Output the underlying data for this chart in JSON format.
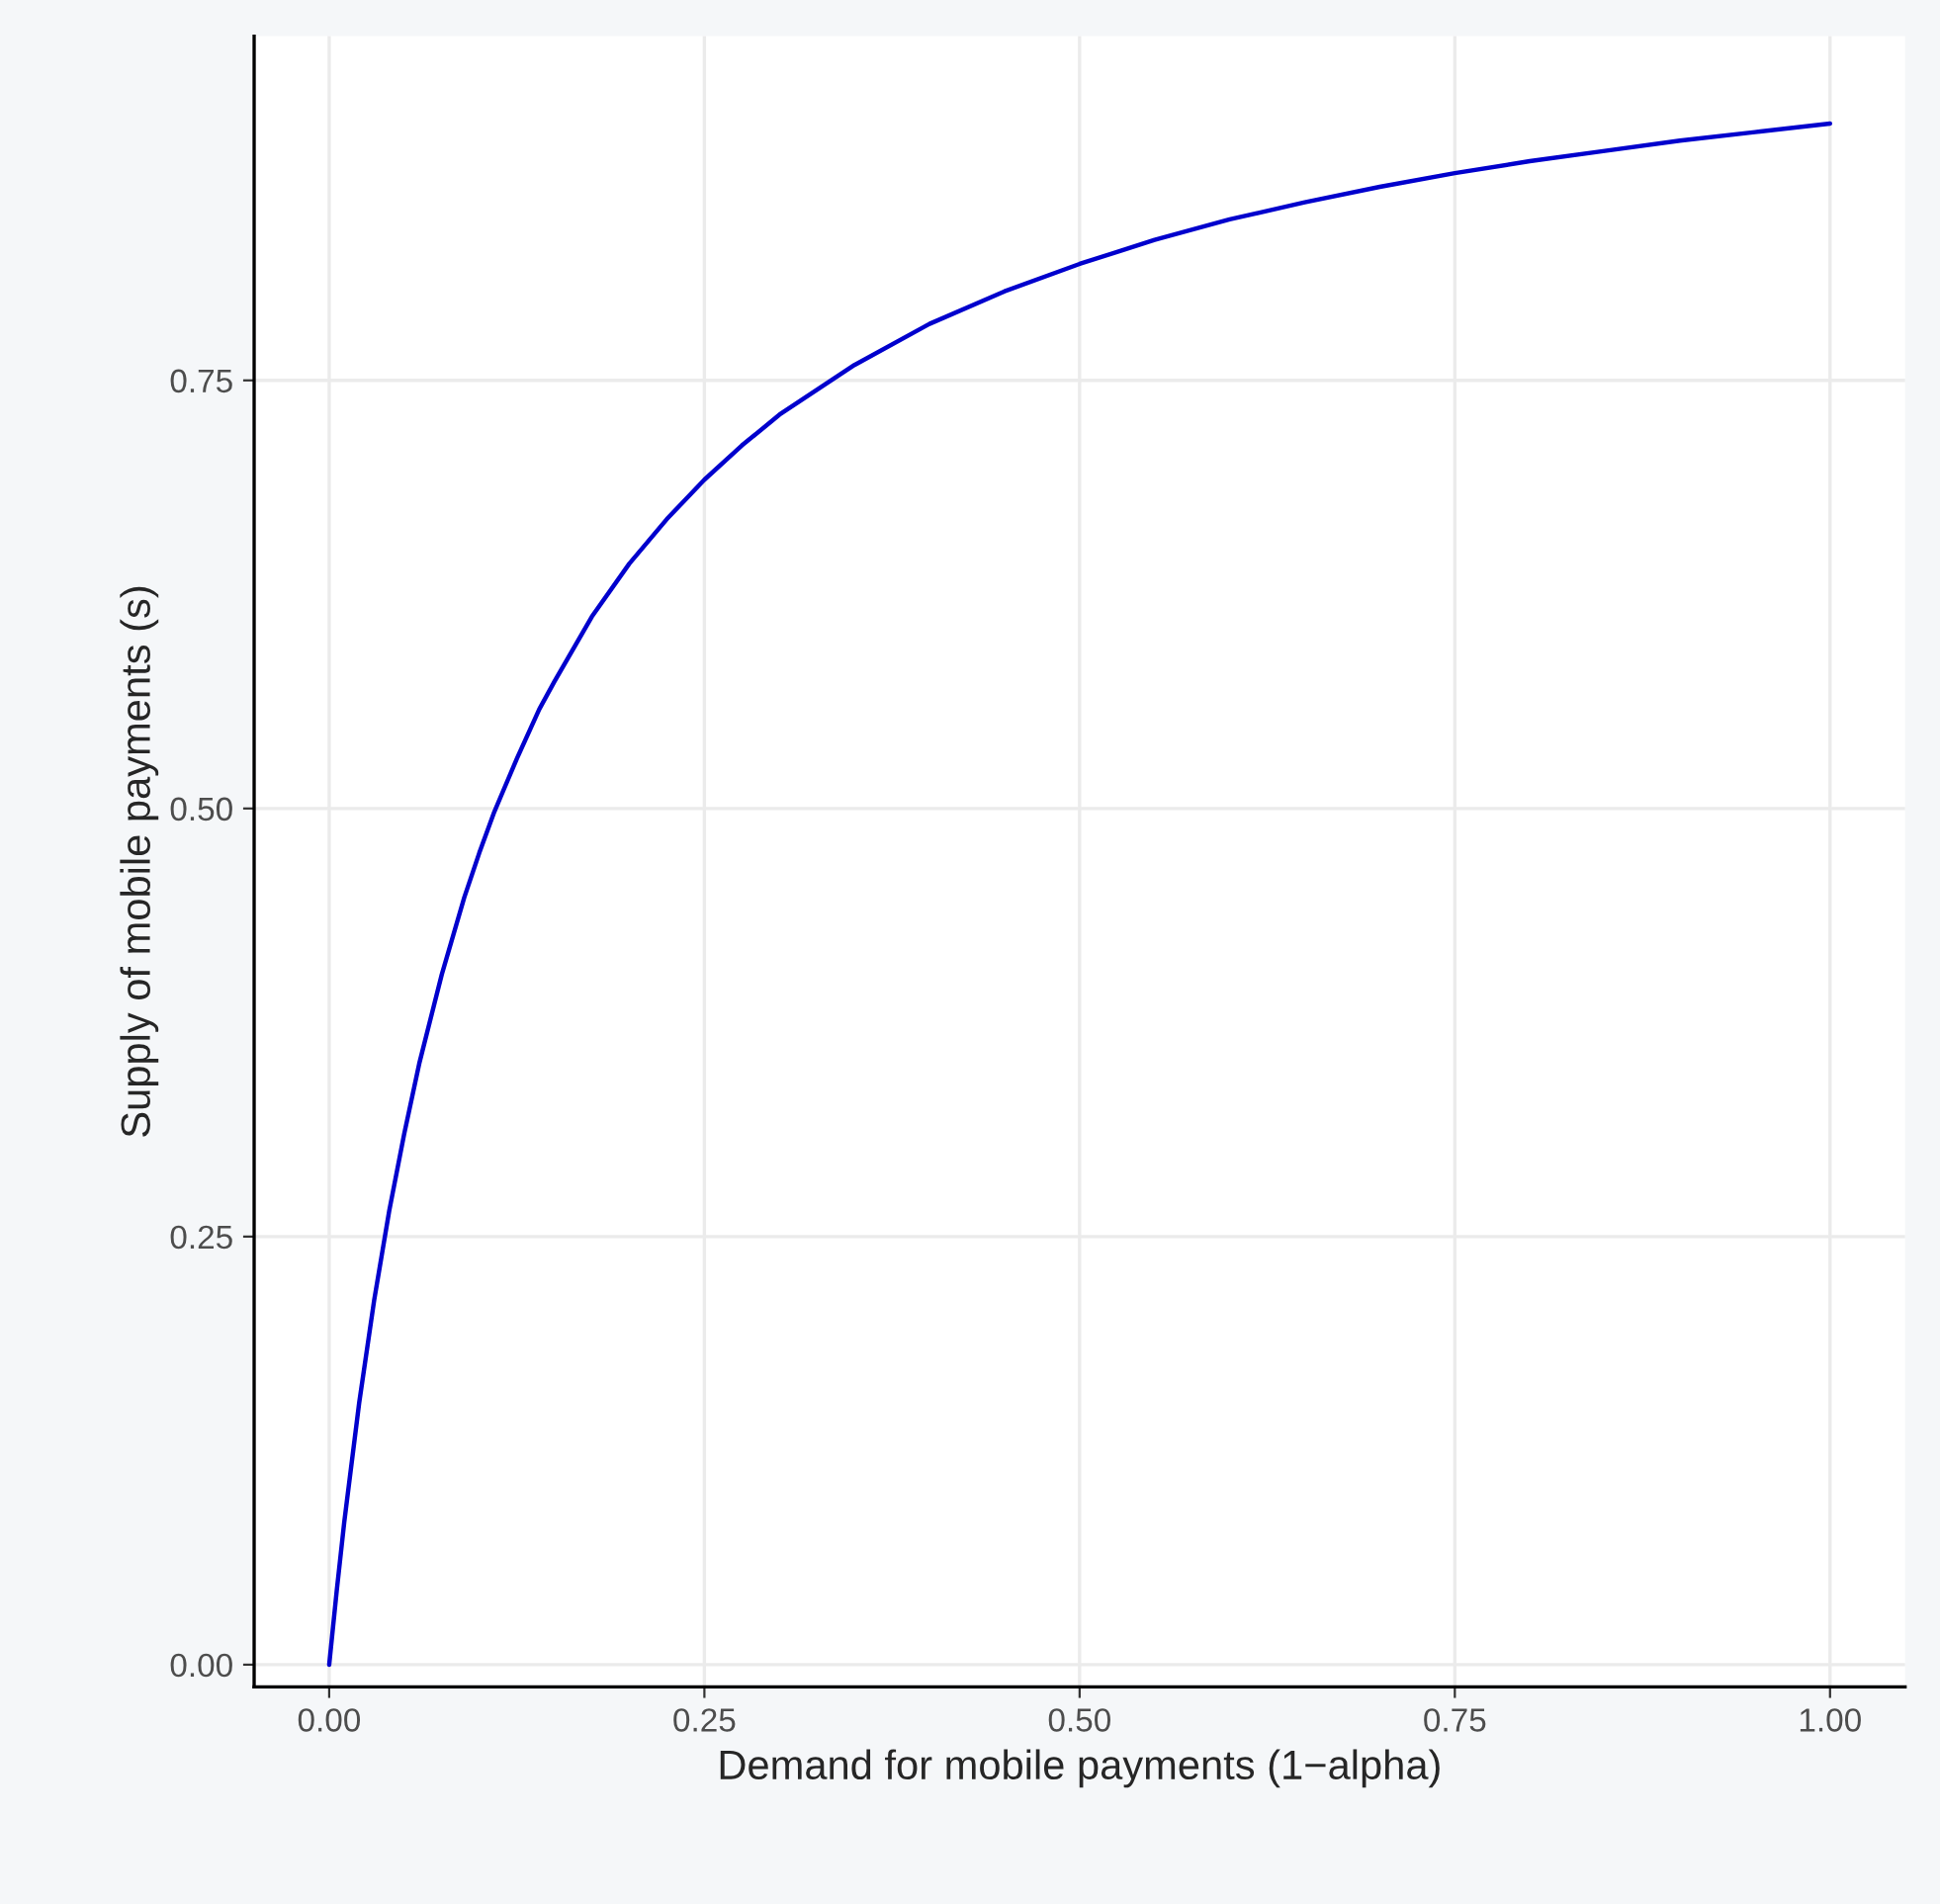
{
  "chart_data": {
    "type": "line",
    "xlabel": "Demand for mobile payments (1−alpha)",
    "ylabel": "Supply of mobile payments (s)",
    "x": [
      0,
      0.005,
      0.01,
      0.02,
      0.03,
      0.04,
      0.05,
      0.06,
      0.075,
      0.09,
      0.1,
      0.11,
      0.125,
      0.14,
      0.15,
      0.175,
      0.2,
      0.225,
      0.25,
      0.275,
      0.3,
      0.35,
      0.4,
      0.45,
      0.5,
      0.55,
      0.6,
      0.65,
      0.7,
      0.75,
      0.8,
      0.85,
      0.9,
      0.95,
      1.0
    ],
    "series": [
      {
        "color": "#0000cd",
        "values": [
          0,
          0.043,
          0.083,
          0.153,
          0.213,
          0.265,
          0.31,
          0.351,
          0.403,
          0.448,
          0.474,
          0.498,
          0.529,
          0.558,
          0.574,
          0.612,
          0.643,
          0.669,
          0.692,
          0.712,
          0.73,
          0.759,
          0.783,
          0.802,
          0.818,
          0.832,
          0.844,
          0.854,
          0.863,
          0.871,
          0.878,
          0.884,
          0.89,
          0.895,
          0.9
        ]
      }
    ],
    "xlim": [
      -0.05,
      1.05
    ],
    "ylim": [
      -0.013,
      0.951
    ],
    "xticks": [
      {
        "value": 0,
        "label": "0.00"
      },
      {
        "value": 0.25,
        "label": "0.25"
      },
      {
        "value": 0.5,
        "label": "0.50"
      },
      {
        "value": 0.75,
        "label": "0.75"
      },
      {
        "value": 1,
        "label": "1.00"
      }
    ],
    "yticks": [
      {
        "value": 0,
        "label": "0.00"
      },
      {
        "value": 0.25,
        "label": "0.25"
      },
      {
        "value": 0.5,
        "label": "0.50"
      },
      {
        "value": 0.75,
        "label": "0.75"
      }
    ],
    "grid": true,
    "line_style": "solid",
    "marker": "none"
  }
}
